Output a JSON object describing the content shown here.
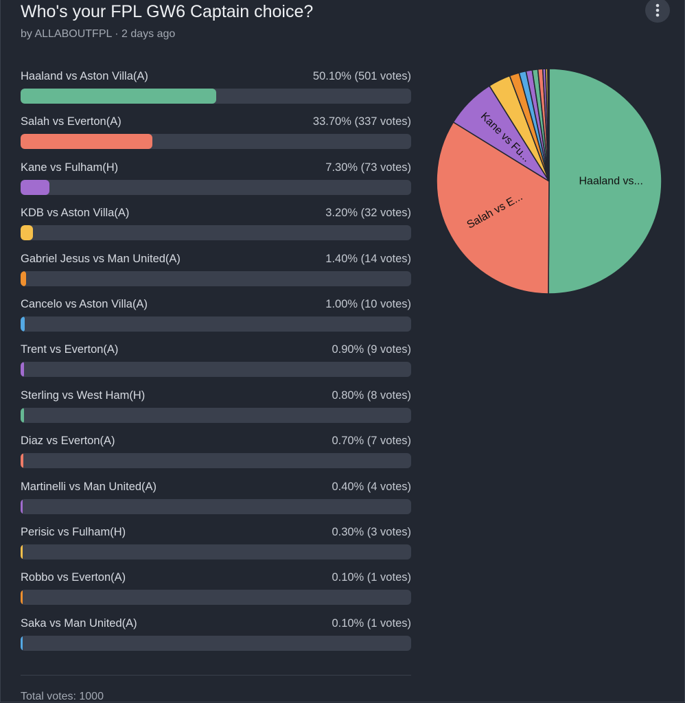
{
  "poll": {
    "title": "Who's your FPL GW6 Captain choice?",
    "byline": "by ALLABOUTFPL · 2 days ago",
    "total": "Total votes: 1000",
    "more_icon": "more-vertical-icon"
  },
  "chart_data": {
    "type": "pie",
    "slices": [
      {
        "label": "Haaland vs Aston Villa(A)",
        "percent": 50.1,
        "votes": 501,
        "value_text": "50.10% (501 votes)",
        "color": "#66b893",
        "pie_label": "Haaland vs..."
      },
      {
        "label": "Salah vs Everton(A)",
        "percent": 33.7,
        "votes": 337,
        "value_text": "33.70% (337 votes)",
        "color": "#ef7b67",
        "pie_label": "Salah vs E..."
      },
      {
        "label": "Kane vs Fulham(H)",
        "percent": 7.3,
        "votes": 73,
        "value_text": "7.30% (73 votes)",
        "color": "#a16ccf",
        "pie_label": "Kane vs Fu..."
      },
      {
        "label": "KDB vs Aston Villa(A)",
        "percent": 3.2,
        "votes": 32,
        "value_text": "3.20% (32 votes)",
        "color": "#f6c04b",
        "pie_label": ""
      },
      {
        "label": "Gabriel Jesus vs Man United(A)",
        "percent": 1.4,
        "votes": 14,
        "value_text": "1.40% (14 votes)",
        "color": "#f0902e",
        "pie_label": ""
      },
      {
        "label": "Cancelo vs Aston Villa(A)",
        "percent": 1.0,
        "votes": 10,
        "value_text": "1.00% (10 votes)",
        "color": "#54a9e4",
        "pie_label": ""
      },
      {
        "label": "Trent vs Everton(A)",
        "percent": 0.9,
        "votes": 9,
        "value_text": "0.90% (9 votes)",
        "color": "#a16ccf",
        "pie_label": ""
      },
      {
        "label": "Sterling vs West Ham(H)",
        "percent": 0.8,
        "votes": 8,
        "value_text": "0.80% (8 votes)",
        "color": "#66b893",
        "pie_label": ""
      },
      {
        "label": "Diaz vs Everton(A)",
        "percent": 0.7,
        "votes": 7,
        "value_text": "0.70% (7 votes)",
        "color": "#ef7b67",
        "pie_label": ""
      },
      {
        "label": "Martinelli vs Man United(A)",
        "percent": 0.4,
        "votes": 4,
        "value_text": "0.40% (4 votes)",
        "color": "#a16ccf",
        "pie_label": ""
      },
      {
        "label": "Perisic vs Fulham(H)",
        "percent": 0.3,
        "votes": 3,
        "value_text": "0.30% (3 votes)",
        "color": "#f6c04b",
        "pie_label": ""
      },
      {
        "label": "Robbo vs Everton(A)",
        "percent": 0.1,
        "votes": 1,
        "value_text": "0.10% (1 votes)",
        "color": "#f0902e",
        "pie_label": ""
      },
      {
        "label": "Saka vs Man United(A)",
        "percent": 0.1,
        "votes": 1,
        "value_text": "0.10% (1 votes)",
        "color": "#54a9e4",
        "pie_label": ""
      }
    ]
  }
}
